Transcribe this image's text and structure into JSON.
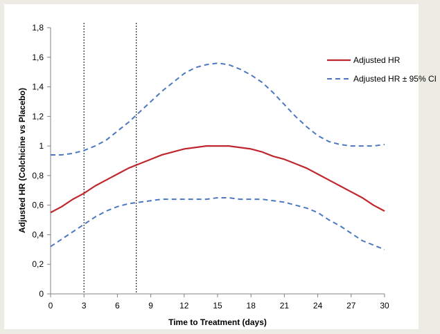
{
  "chart_data": {
    "type": "line",
    "title": "",
    "xlabel": "Time to Treatment (days)",
    "ylabel": "Adjusted HR (Colchicine vs Placebo)",
    "xlim": [
      0,
      30
    ],
    "ylim": [
      0,
      1.8
    ],
    "x_ticks": [
      "0",
      "3",
      "6",
      "9",
      "12",
      "15",
      "18",
      "21",
      "24",
      "27",
      "30"
    ],
    "y_ticks": [
      "0",
      "0,2",
      "0,4",
      "0,6",
      "0,8",
      "1",
      "1,2",
      "1,4",
      "1,6",
      "1,8"
    ],
    "grid": false,
    "legend_position": "right",
    "reference_lines_x": [
      3,
      7.7
    ],
    "series": [
      {
        "name": "Adjusted HR",
        "style": "solid",
        "color": "#c0262d",
        "x": [
          0,
          1,
          2,
          3,
          4,
          5,
          6,
          7,
          8,
          9,
          10,
          11,
          12,
          13,
          14,
          15,
          16,
          17,
          18,
          19,
          20,
          21,
          22,
          23,
          24,
          25,
          26,
          27,
          28,
          29,
          30
        ],
        "y": [
          0.55,
          0.59,
          0.64,
          0.68,
          0.73,
          0.77,
          0.81,
          0.85,
          0.88,
          0.91,
          0.94,
          0.96,
          0.98,
          0.99,
          1.0,
          1.0,
          1.0,
          0.99,
          0.98,
          0.96,
          0.93,
          0.91,
          0.88,
          0.85,
          0.81,
          0.77,
          0.73,
          0.69,
          0.65,
          0.6,
          0.56
        ]
      },
      {
        "name": "Adjusted HR ± 95% CI",
        "style": "dashed",
        "color": "#4a78c0",
        "x": [
          0,
          1,
          2,
          3,
          4,
          5,
          6,
          7,
          8,
          9,
          10,
          11,
          12,
          13,
          14,
          15,
          16,
          17,
          18,
          19,
          20,
          21,
          22,
          23,
          24,
          25,
          26,
          27,
          28,
          29,
          30
        ],
        "y": [
          0.94,
          0.94,
          0.95,
          0.97,
          1.0,
          1.04,
          1.1,
          1.16,
          1.23,
          1.3,
          1.37,
          1.43,
          1.49,
          1.53,
          1.55,
          1.56,
          1.55,
          1.52,
          1.48,
          1.43,
          1.36,
          1.28,
          1.2,
          1.13,
          1.07,
          1.03,
          1.01,
          1.0,
          1.0,
          1.0,
          1.01
        ]
      },
      {
        "name": "",
        "style": "dashed",
        "color": "#4a78c0",
        "x": [
          0,
          1,
          2,
          3,
          4,
          5,
          6,
          7,
          8,
          9,
          10,
          11,
          12,
          13,
          14,
          15,
          16,
          17,
          18,
          19,
          20,
          21,
          22,
          23,
          24,
          25,
          26,
          27,
          28,
          29,
          30
        ],
        "y": [
          0.32,
          0.37,
          0.42,
          0.47,
          0.52,
          0.56,
          0.59,
          0.61,
          0.62,
          0.63,
          0.64,
          0.64,
          0.64,
          0.64,
          0.64,
          0.65,
          0.65,
          0.64,
          0.64,
          0.64,
          0.63,
          0.62,
          0.6,
          0.58,
          0.55,
          0.5,
          0.46,
          0.41,
          0.36,
          0.33,
          0.3
        ]
      }
    ]
  }
}
